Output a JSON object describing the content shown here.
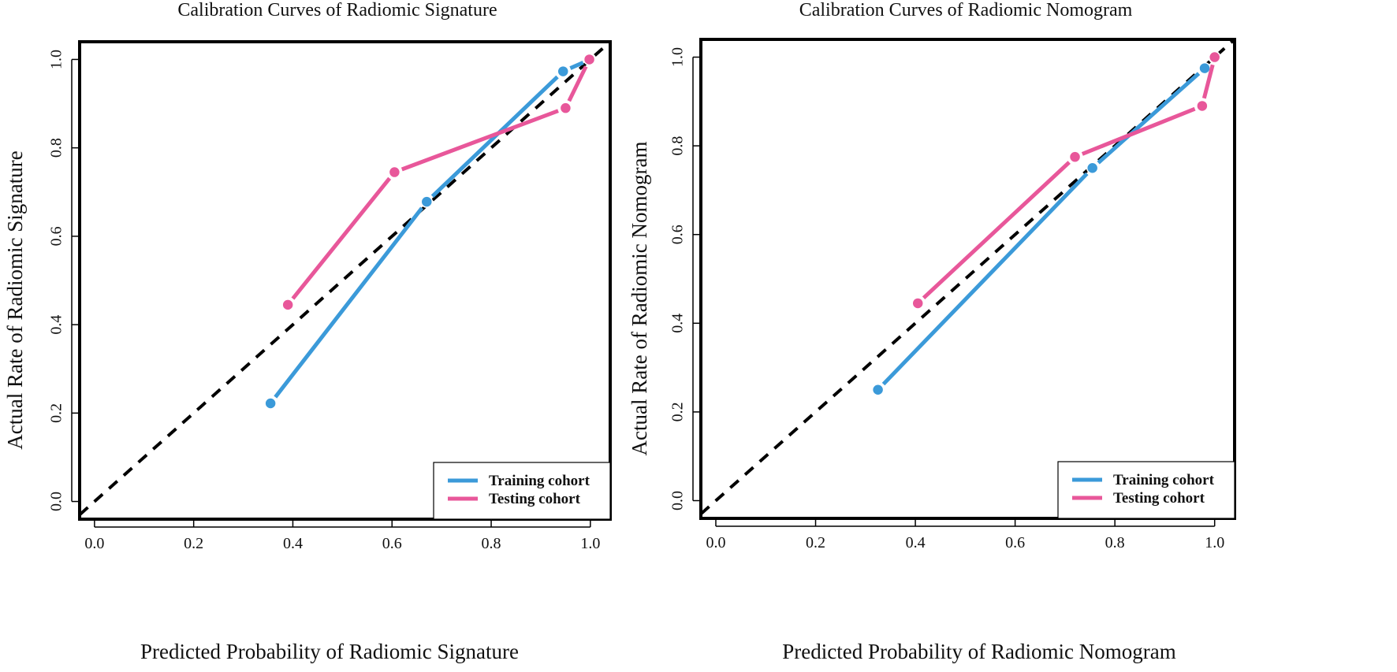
{
  "chart_data": [
    {
      "type": "line",
      "title": "Calibration Curves of Radiomic Signature",
      "xlabel": "Predicted Probability of Radiomic Signature",
      "ylabel": "Actual Rate of Radiomic Signature",
      "xlim": [
        -0.03,
        1.04
      ],
      "ylim": [
        -0.04,
        1.04
      ],
      "xticks": [
        "0.0",
        "0.2",
        "0.4",
        "0.6",
        "0.8",
        "1.0"
      ],
      "yticks": [
        "0.0",
        "0.2",
        "0.4",
        "0.6",
        "0.8",
        "1.0"
      ],
      "legend_position": "bottom-right",
      "reference_line": {
        "name": "Ideal",
        "x": [
          -0.03,
          1.04
        ],
        "y": [
          -0.03,
          1.04
        ],
        "style": "dashed"
      },
      "series": [
        {
          "name": "Training cohort",
          "color": "#3b9ad9",
          "x": [
            0.355,
            0.67,
            0.945,
            1.0
          ],
          "y": [
            0.222,
            0.678,
            0.973,
            1.0
          ]
        },
        {
          "name": "Testing cohort",
          "color": "#e8579a",
          "x": [
            0.39,
            0.605,
            0.95,
            0.998
          ],
          "y": [
            0.445,
            0.745,
            0.89,
            1.0
          ]
        }
      ]
    },
    {
      "type": "line",
      "title": "Calibration Curves of Radiomic Nomogram",
      "xlabel": "Predicted Probability of Radiomic Nomogram",
      "ylabel": "Actual Rate of Radiomic Nomogram",
      "xlim": [
        -0.03,
        1.04
      ],
      "ylim": [
        -0.04,
        1.04
      ],
      "xticks": [
        "0.0",
        "0.2",
        "0.4",
        "0.6",
        "0.8",
        "1.0"
      ],
      "yticks": [
        "0.0",
        "0.2",
        "0.4",
        "0.6",
        "0.8",
        "1.0"
      ],
      "legend_position": "bottom-right",
      "reference_line": {
        "name": "Ideal",
        "x": [
          -0.03,
          1.04
        ],
        "y": [
          -0.03,
          1.04
        ],
        "style": "dashed"
      },
      "series": [
        {
          "name": "Training cohort",
          "color": "#3b9ad9",
          "x": [
            0.325,
            0.755,
            0.98,
            1.0
          ],
          "y": [
            0.25,
            0.75,
            0.975,
            1.0
          ]
        },
        {
          "name": "Testing cohort",
          "color": "#e8579a",
          "x": [
            0.405,
            0.72,
            0.975,
            1.0
          ],
          "y": [
            0.445,
            0.775,
            0.89,
            1.0
          ]
        }
      ]
    }
  ]
}
